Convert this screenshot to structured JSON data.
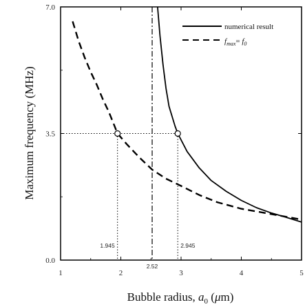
{
  "chart_data": {
    "type": "line",
    "xlabel_main": "Bubble radius, ",
    "xlabel_var": "a",
    "xlabel_sub": "0",
    "xlabel_unit_pre": " (",
    "xlabel_unit_mu": "μ",
    "xlabel_unit_post": "m)",
    "ylabel": "Maximum frequency (MHz)",
    "xlim": [
      1,
      5
    ],
    "ylim": [
      0,
      7
    ],
    "x_ticks": [
      "1",
      "2",
      "3",
      "4",
      "5"
    ],
    "y_ticks": [
      "0.0",
      "3.5",
      "7.0"
    ],
    "y_tick_values": [
      0,
      3.5,
      7
    ],
    "x_tick_values": [
      1,
      2,
      3,
      4,
      5
    ],
    "series": [
      {
        "name": "numerical result",
        "style": "solid",
        "color": "#000000",
        "x": [
          2.6,
          2.65,
          2.7,
          2.75,
          2.8,
          2.9,
          2.945,
          3.1,
          3.3,
          3.5,
          3.75,
          4.0,
          4.25,
          4.5,
          4.75,
          5.0
        ],
        "y": [
          7.2,
          6.2,
          5.4,
          4.75,
          4.25,
          3.7,
          3.5,
          3.0,
          2.55,
          2.2,
          1.9,
          1.65,
          1.45,
          1.3,
          1.18,
          1.05
        ]
      },
      {
        "name_var": "f",
        "name_var_sub": "max",
        "name_eq": "= ",
        "name_rhs": "f",
        "name_rhs_sub": "0",
        "style": "dashed",
        "color": "#000000",
        "x": [
          1.2,
          1.3,
          1.4,
          1.5,
          1.6,
          1.7,
          1.8,
          1.945,
          2.1,
          2.3,
          2.52,
          2.75,
          3.0,
          3.3,
          3.6,
          4.0,
          4.4,
          4.8,
          5.0
        ],
        "y": [
          6.6,
          6.05,
          5.6,
          5.2,
          4.85,
          4.45,
          4.1,
          3.5,
          3.2,
          2.85,
          2.5,
          2.25,
          2.05,
          1.8,
          1.6,
          1.42,
          1.3,
          1.18,
          1.12
        ]
      }
    ],
    "markers": [
      {
        "x": 1.945,
        "y": 3.5,
        "label": "1.945"
      },
      {
        "x": 2.945,
        "y": 3.5,
        "label": "2.945"
      }
    ],
    "vline": {
      "x": 2.52,
      "label": "2.52",
      "style": "dash-dot"
    },
    "hline_value": 3.5,
    "grid": false,
    "legend_position": "top-right"
  }
}
